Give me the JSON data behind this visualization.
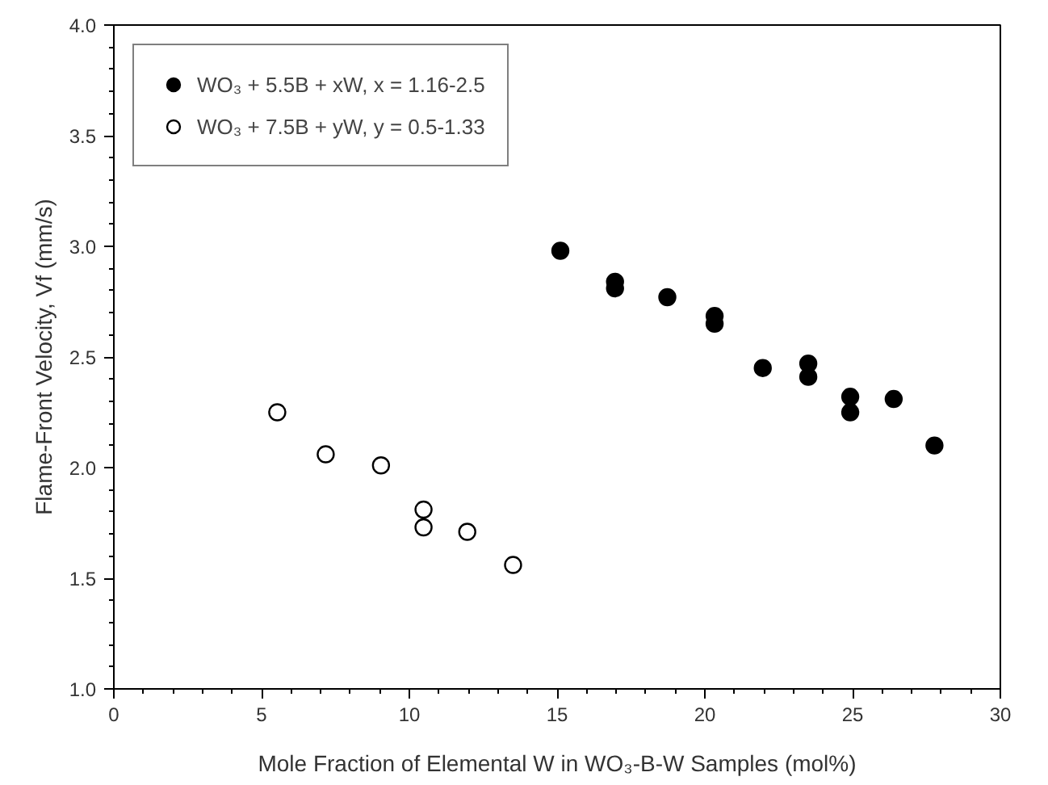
{
  "chart_data": {
    "type": "scatter",
    "xlabel": "Mole Fraction of Elemental W in WO₃-B-W Samples (mol%)",
    "ylabel": "Flame-Front Velocity, Vf (mm/s)",
    "xlim": [
      0,
      30
    ],
    "xticks": [
      0,
      5,
      10,
      15,
      20,
      25,
      30
    ],
    "ylim": [
      1.0,
      4.0
    ],
    "yticks": [
      {
        "value": 1.0,
        "label": "1.0"
      },
      {
        "value": 1.5,
        "label": "1.5"
      },
      {
        "value": 2.0,
        "label": "2.0"
      },
      {
        "value": 2.5,
        "label": "2.5"
      },
      {
        "value": 3.0,
        "label": "3.0"
      },
      {
        "value": 3.5,
        "label": "3.5"
      },
      {
        "value": 4.0,
        "label": "4.0"
      }
    ],
    "grid": false,
    "legend": "top left",
    "marker": "circle",
    "series": [
      {
        "name": "WO₃ + 5.5B + xW, x = 1.16-2.5",
        "color": "#000000",
        "x": [
          15.11,
          16.96,
          16.96,
          18.73,
          20.33,
          20.33,
          21.96,
          23.5,
          23.5,
          24.92,
          24.92,
          26.39,
          27.77
        ],
        "values": [
          2.98,
          2.84,
          2.81,
          2.77,
          2.685,
          2.65,
          2.45,
          2.47,
          2.41,
          2.32,
          2.25,
          2.31,
          2.1
        ]
      },
      {
        "name": "WO₃ + 7.5B + yW, y = 0.5-1.33",
        "color": "#ffffff",
        "x": [
          5.53,
          7.17,
          9.04,
          10.48,
          10.48,
          11.96,
          13.51
        ],
        "values": [
          2.25,
          2.06,
          2.01,
          1.81,
          1.73,
          1.71,
          1.56
        ]
      }
    ]
  }
}
